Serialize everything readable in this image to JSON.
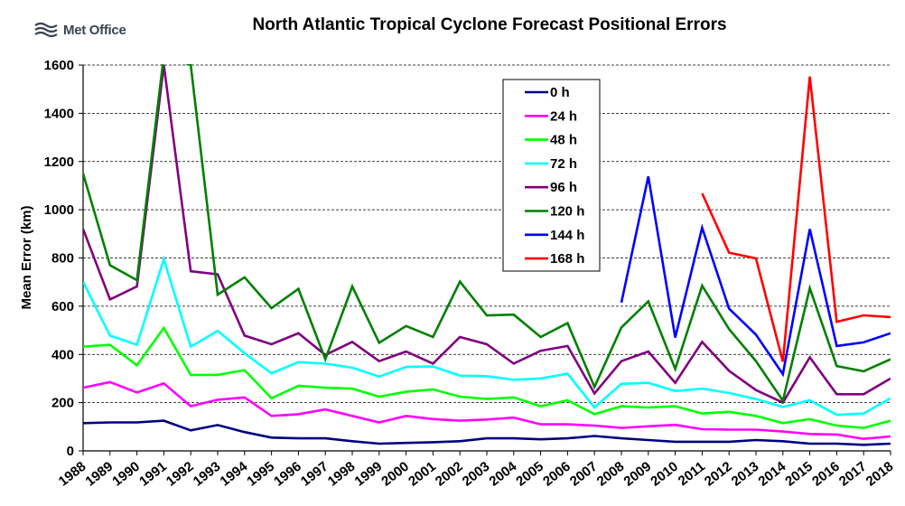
{
  "brand": {
    "name": "Met Office",
    "logo_icon": "met-office-wave-logo"
  },
  "chart_data": {
    "type": "line",
    "title": "North Atlantic Tropical Cyclone Forecast Positional Errors",
    "xlabel": "",
    "ylabel": "Mean Error (km)",
    "ylim": [
      0,
      1600
    ],
    "yticks": [
      0,
      200,
      400,
      600,
      800,
      1000,
      1200,
      1400,
      1600
    ],
    "grid": "horizontal dashed",
    "legend_position": "top-center",
    "categories": [
      "1988",
      "1989",
      "1990",
      "1991",
      "1992",
      "1993",
      "1994",
      "1995",
      "1996",
      "1997",
      "1998",
      "1999",
      "2000",
      "2001",
      "2002",
      "2003",
      "2004",
      "2005",
      "2006",
      "2007",
      "2008",
      "2009",
      "2010",
      "2011",
      "2012",
      "2013",
      "2014",
      "2015",
      "2016",
      "2017",
      "2018"
    ],
    "series": [
      {
        "name": "0 h",
        "color": "#000080",
        "values": [
          115,
          118,
          118,
          125,
          85,
          107,
          78,
          55,
          52,
          52,
          40,
          30,
          33,
          36,
          40,
          52,
          52,
          48,
          52,
          62,
          52,
          45,
          38,
          38,
          38,
          45,
          40,
          30,
          30,
          25,
          30
        ]
      },
      {
        "name": "24 h",
        "color": "#ff00ff",
        "values": [
          262,
          285,
          242,
          280,
          185,
          212,
          222,
          145,
          152,
          172,
          145,
          118,
          145,
          132,
          125,
          130,
          138,
          110,
          110,
          105,
          95,
          102,
          108,
          90,
          88,
          88,
          80,
          70,
          68,
          50,
          60
        ]
      },
      {
        "name": "48 h",
        "color": "#00ff00",
        "values": [
          432,
          440,
          355,
          510,
          315,
          315,
          335,
          218,
          270,
          262,
          258,
          225,
          245,
          255,
          225,
          215,
          222,
          185,
          210,
          152,
          185,
          180,
          185,
          155,
          162,
          145,
          115,
          132,
          105,
          95,
          125
        ]
      },
      {
        "name": "72 h",
        "color": "#00ffff",
        "values": [
          702,
          478,
          440,
          795,
          432,
          498,
          405,
          322,
          368,
          362,
          345,
          308,
          348,
          350,
          312,
          310,
          295,
          300,
          320,
          180,
          278,
          282,
          248,
          258,
          240,
          215,
          182,
          210,
          150,
          155,
          218
        ]
      },
      {
        "name": "96 h",
        "color": "#800080",
        "values": [
          920,
          628,
          682,
          1600,
          745,
          732,
          478,
          442,
          488,
          398,
          452,
          372,
          412,
          362,
          472,
          442,
          362,
          415,
          435,
          238,
          372,
          412,
          282,
          452,
          332,
          252,
          200,
          388,
          235,
          235,
          300
        ]
      },
      {
        "name": "120 h",
        "color": "#008000",
        "values": [
          1150,
          770,
          708,
          1640,
          1600,
          648,
          720,
          592,
          672,
          380,
          682,
          448,
          518,
          472,
          702,
          562,
          565,
          472,
          530,
          265,
          512,
          620,
          340,
          685,
          505,
          372,
          208,
          675,
          352,
          330,
          380
        ]
      },
      {
        "name": "144 h",
        "color": "#0000ff",
        "values": [
          null,
          null,
          null,
          null,
          null,
          null,
          null,
          null,
          null,
          null,
          null,
          null,
          null,
          null,
          null,
          null,
          null,
          null,
          null,
          null,
          615,
          1138,
          470,
          925,
          590,
          482,
          318,
          920,
          435,
          450,
          488
        ]
      },
      {
        "name": "168 h",
        "color": "#ff0000",
        "values": [
          null,
          null,
          null,
          null,
          null,
          null,
          null,
          null,
          null,
          null,
          null,
          null,
          null,
          null,
          null,
          null,
          null,
          null,
          null,
          null,
          null,
          null,
          null,
          1068,
          822,
          798,
          370,
          1552,
          535,
          562,
          555
        ]
      }
    ]
  }
}
